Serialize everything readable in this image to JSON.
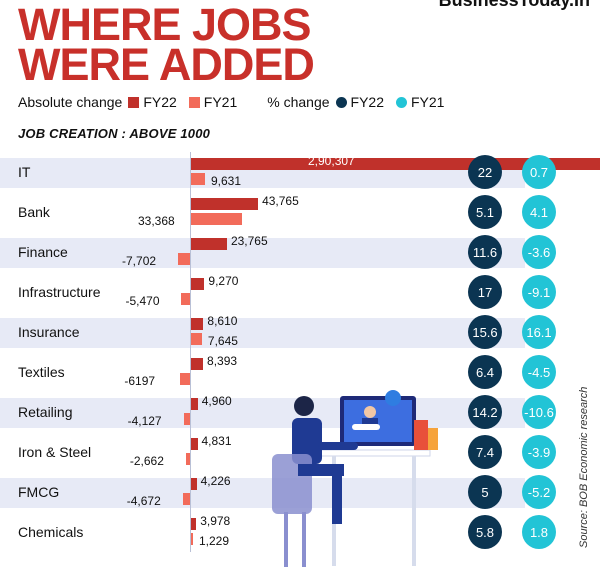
{
  "brand": "BusinessToday.In",
  "title": {
    "line1": "WHERE JOBS",
    "line2": "WERE ADDED"
  },
  "legend": {
    "abs_label": "Absolute change",
    "pct_label": "% change",
    "fy22": "FY22",
    "fy21": "FY21",
    "colors": {
      "abs_fy22": "#c0312b",
      "abs_fy21": "#f26b5a",
      "pct_fy22": "#0b3552",
      "pct_fy21": "#22c4d6"
    }
  },
  "subtitle": "JOB CREATION : ABOVE 1000",
  "source": "Source: BOB Economic research",
  "chart_data": {
    "type": "bar",
    "title": "WHERE JOBS WERE ADDED",
    "subtitle": "JOB CREATION : ABOVE 1000",
    "categories": [
      "IT",
      "Bank",
      "Finance",
      "Infrastructure",
      "Insurance",
      "Textiles",
      "Retailing",
      "Iron & Steel",
      "FMCG",
      "Chemicals"
    ],
    "series": [
      {
        "name": "FY22",
        "metric": "Absolute change",
        "values": [
          290307,
          43765,
          23765,
          9270,
          8610,
          8393,
          4960,
          4831,
          4226,
          3978
        ],
        "labels": [
          "2,90,307",
          "43,765",
          "23,765",
          "9,270",
          "8,610",
          "8,393",
          "4,960",
          "4,831",
          "4,226",
          "3,978"
        ]
      },
      {
        "name": "FY21",
        "metric": "Absolute change",
        "values": [
          9631,
          33368,
          -7702,
          -5470,
          7645,
          -6197,
          -4127,
          -2662,
          -4672,
          1229
        ],
        "labels": [
          "9,631",
          "33,368",
          "-7,702",
          "-5,470",
          "7,645",
          "-6197",
          "-4,127",
          "-2,662",
          "-4,672",
          "1,229"
        ]
      },
      {
        "name": "FY22",
        "metric": "% change",
        "values": [
          22,
          5.1,
          11.6,
          17,
          15.6,
          6.4,
          14.2,
          7.4,
          5,
          5.8
        ],
        "labels": [
          "22",
          "5.1",
          "11.6",
          "17",
          "15.6",
          "6.4",
          "14.2",
          "7.4",
          "5",
          "5.8"
        ]
      },
      {
        "name": "FY21",
        "metric": "% change",
        "values": [
          0.7,
          4.1,
          -3.6,
          -9.1,
          16.1,
          -4.5,
          -10.6,
          -3.9,
          -5.2,
          1.8
        ],
        "labels": [
          "0.7",
          "4.1",
          "-3.6",
          "-9.1",
          "16.1",
          "-4.5",
          "-10.6",
          "-3.9",
          "-5.2",
          "1.8"
        ]
      }
    ],
    "legend": "top"
  }
}
